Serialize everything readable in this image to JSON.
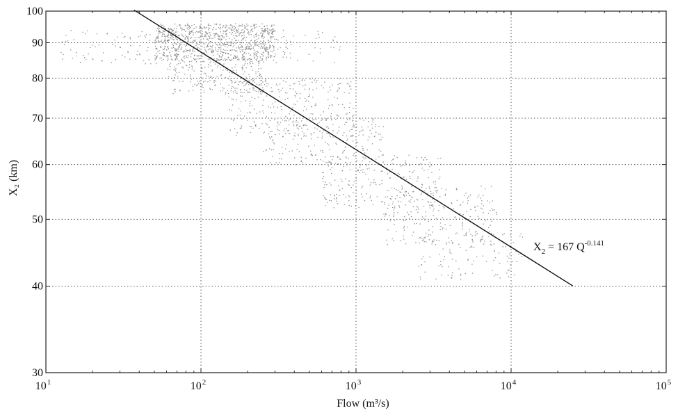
{
  "chart_data": {
    "type": "scatter",
    "title": "",
    "xlabel": "Flow (m³/s)",
    "ylabel": "X₂ (km)",
    "x_scale": "log",
    "y_scale": "log",
    "xlim": [
      10,
      100000
    ],
    "ylim": [
      30,
      100
    ],
    "grid": true,
    "x_ticks": [
      {
        "value": 10,
        "base": "10",
        "exp": "1"
      },
      {
        "value": 100,
        "base": "10",
        "exp": "2"
      },
      {
        "value": 1000,
        "base": "10",
        "exp": "3"
      },
      {
        "value": 10000,
        "base": "10",
        "exp": "4"
      },
      {
        "value": 100000,
        "base": "10",
        "exp": "5"
      }
    ],
    "y_ticks": [
      30,
      40,
      50,
      60,
      70,
      80,
      90,
      100
    ],
    "y_tick_labels": [
      "30",
      "40",
      "50",
      "60",
      "70",
      "80",
      "90",
      "100"
    ],
    "fit_line": {
      "coefficient": 167,
      "exponent": -0.141,
      "x_range": [
        37,
        25000
      ],
      "label_parts": {
        "lhs": "X",
        "lhs_sub": "2",
        "mid": " = 167 Q",
        "sup": "-0.141"
      }
    },
    "scatter_clusters": [
      {
        "x_min": 12,
        "x_max": 800,
        "y_min": 84,
        "y_max": 94,
        "n": 220
      },
      {
        "x_min": 50,
        "x_max": 300,
        "y_min": 85,
        "y_max": 96,
        "n": 900
      },
      {
        "x_min": 60,
        "x_max": 250,
        "y_min": 76,
        "y_max": 85,
        "n": 220
      },
      {
        "x_min": 150,
        "x_max": 1000,
        "y_min": 66,
        "y_max": 80,
        "n": 300
      },
      {
        "x_min": 250,
        "x_max": 1500,
        "y_min": 60,
        "y_max": 70,
        "n": 200
      },
      {
        "x_min": 600,
        "x_max": 3500,
        "y_min": 52,
        "y_max": 62,
        "n": 250
      },
      {
        "x_min": 1500,
        "x_max": 8000,
        "y_min": 46,
        "y_max": 56,
        "n": 220
      },
      {
        "x_min": 2500,
        "x_max": 12000,
        "y_min": 41,
        "y_max": 48,
        "n": 120
      }
    ]
  }
}
